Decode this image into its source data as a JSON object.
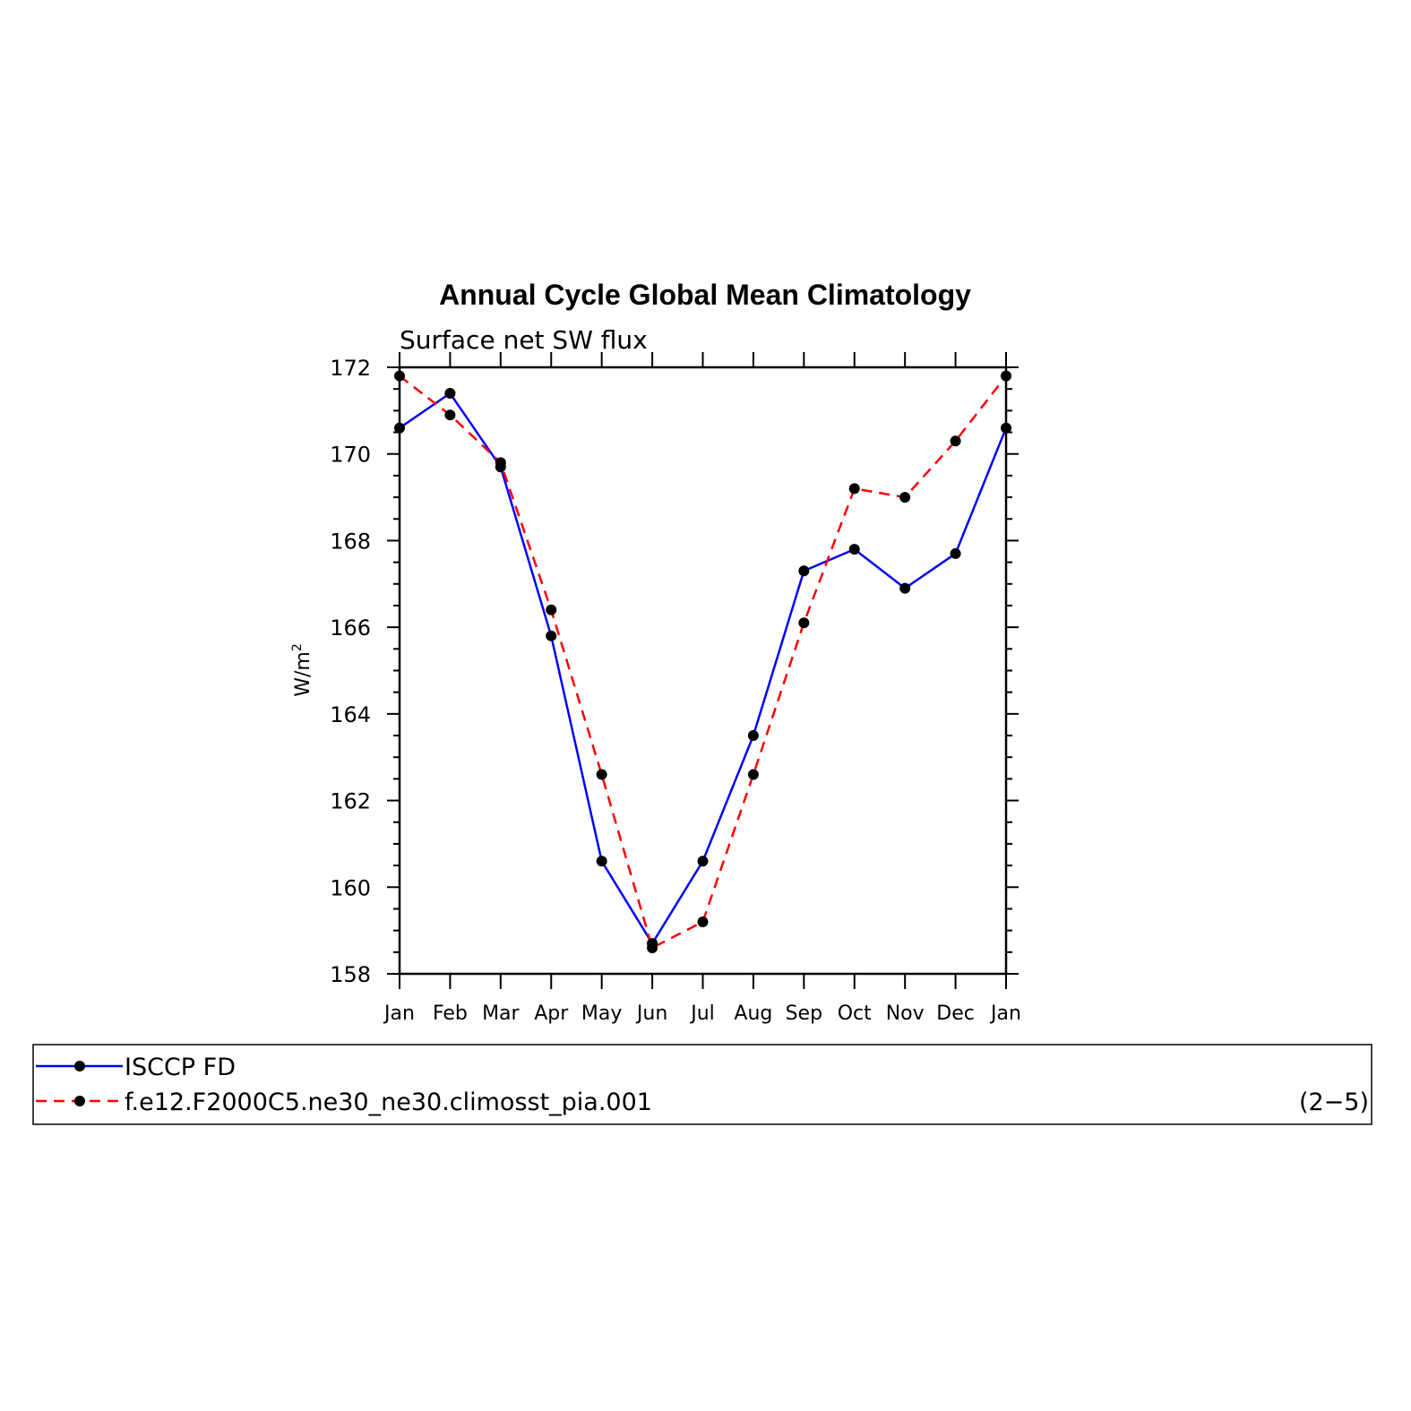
{
  "chart_data": {
    "type": "line",
    "title": "Annual Cycle Global Mean Climatology",
    "subtitle": "Surface net SW flux",
    "ylabel": "W/m",
    "ylabel_sup": "2",
    "ylim": [
      158,
      172
    ],
    "yticks": [
      158,
      160,
      162,
      164,
      166,
      168,
      170,
      172
    ],
    "categories": [
      "Jan",
      "Feb",
      "Mar",
      "Apr",
      "May",
      "Jun",
      "Jul",
      "Aug",
      "Sep",
      "Oct",
      "Nov",
      "Dec",
      "Jan"
    ],
    "grid": false,
    "legend_position": "bottom",
    "series": [
      {
        "name": "ISCCP FD",
        "color": "#0000ff",
        "dash": "solid",
        "values": [
          170.6,
          171.4,
          169.7,
          165.8,
          160.6,
          158.7,
          160.6,
          163.5,
          167.3,
          167.8,
          166.9,
          167.7,
          170.6
        ]
      },
      {
        "name": "f.e12.F2000C5.ne30_ne30.climosst_pia.001",
        "color": "#ff0000",
        "dash": "dashed",
        "values": [
          171.8,
          170.9,
          169.8,
          166.4,
          162.6,
          158.6,
          159.2,
          162.6,
          166.1,
          169.2,
          169.0,
          170.3,
          171.8
        ]
      }
    ],
    "annotation": "(2−5)"
  }
}
